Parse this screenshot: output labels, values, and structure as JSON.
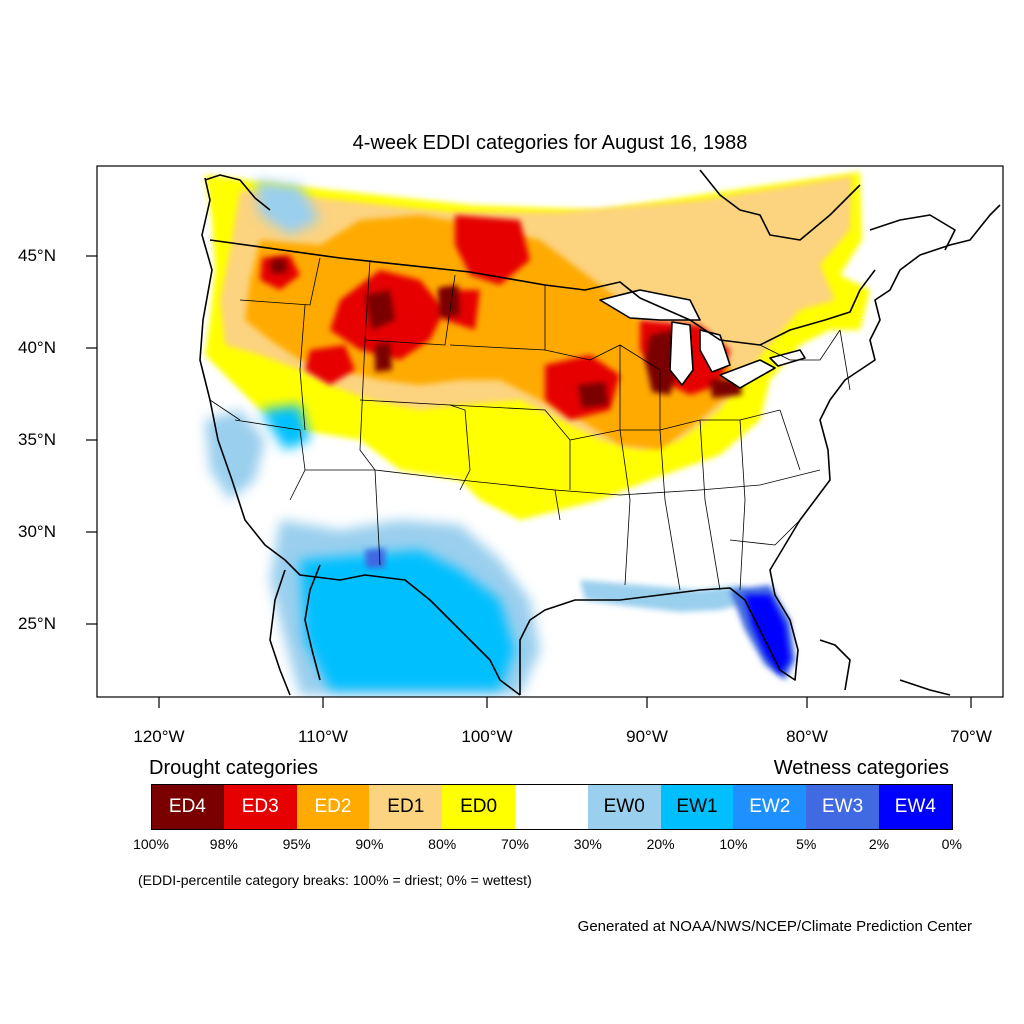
{
  "title": "4-week EDDI categories for August 16, 1988",
  "lon_ticks": [
    "120°W",
    "110°W",
    "100°W",
    "90°W",
    "80°W",
    "70°W"
  ],
  "lat_ticks": [
    "45°N",
    "40°N",
    "35°N",
    "30°N",
    "25°N"
  ],
  "legend": {
    "drought_heading": "Drought categories",
    "wetness_heading": "Wetness categories",
    "categories": [
      {
        "label": "ED4",
        "color": "#7a0000",
        "text_color": "#ffffff"
      },
      {
        "label": "ED3",
        "color": "#e60000",
        "text_color": "#ffffff"
      },
      {
        "label": "ED2",
        "color": "#ffaa00",
        "text_color": "#ffffff"
      },
      {
        "label": "ED1",
        "color": "#fcd37f",
        "text_color": "#000000"
      },
      {
        "label": "ED0",
        "color": "#ffff00",
        "text_color": "#000000"
      },
      {
        "label": "",
        "color": "#ffffff",
        "text_color": "#000000"
      },
      {
        "label": "EW0",
        "color": "#9acfee",
        "text_color": "#000000"
      },
      {
        "label": "EW1",
        "color": "#00bfff",
        "text_color": "#000000"
      },
      {
        "label": "EW2",
        "color": "#1e90ff",
        "text_color": "#ffffff"
      },
      {
        "label": "EW3",
        "color": "#4169e1",
        "text_color": "#ffffff"
      },
      {
        "label": "EW4",
        "color": "#0000ff",
        "text_color": "#ffffff"
      }
    ],
    "percentiles": [
      "100%",
      "98%",
      "95%",
      "90%",
      "80%",
      "70%",
      "30%",
      "20%",
      "10%",
      "5%",
      "2%",
      "0%"
    ],
    "note": "(EDDI-percentile category breaks: 100% = driest; 0% = wettest)"
  },
  "credit": "Generated at NOAA/NWS/NCEP/Climate Prediction Center"
}
